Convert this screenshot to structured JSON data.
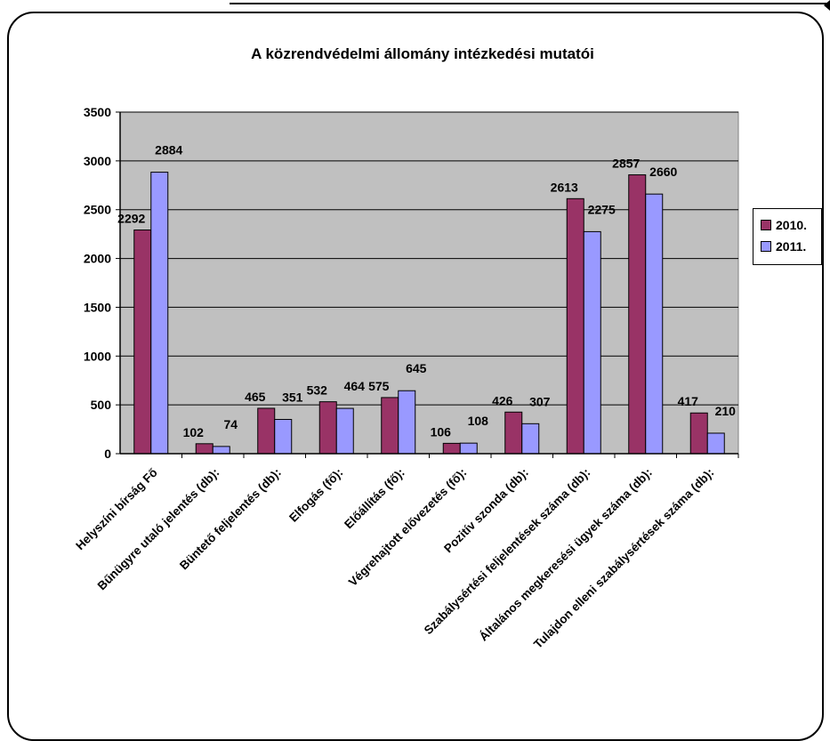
{
  "chart_data": {
    "type": "bar",
    "title": "A közrendvédelmi állomány intézkedési mutatói",
    "categories": [
      "Helyszíni bírság Fő",
      "Bűnügyre utaló jelentés (db):",
      "Büntető feljelentés (db):",
      "Elfogás (fő):",
      "Előállítás (fő):",
      "Végrehajtott elővezetés (fő):",
      "Pozitív szonda (db):",
      "Szabálysértési feljelentések száma (db):",
      "Általános megkeresési ügyek száma (db):",
      "Tulajdon elleni szabálysértések száma (db):"
    ],
    "series": [
      {
        "name": "2010.",
        "color": "#993366",
        "values": [
          2292,
          102,
          465,
          532,
          575,
          106,
          426,
          2613,
          2857,
          417
        ]
      },
      {
        "name": "2011.",
        "color": "#9999FF",
        "values": [
          2884,
          74,
          351,
          464,
          645,
          108,
          307,
          2275,
          2660,
          210
        ]
      }
    ],
    "ylim": [
      0,
      3500
    ],
    "yticks": [
      "0",
      "500",
      "1000",
      "1500",
      "2000",
      "2500",
      "3000",
      "3500"
    ],
    "grid": true,
    "plot_background": "#C0C0C0",
    "legend_position": "right"
  }
}
